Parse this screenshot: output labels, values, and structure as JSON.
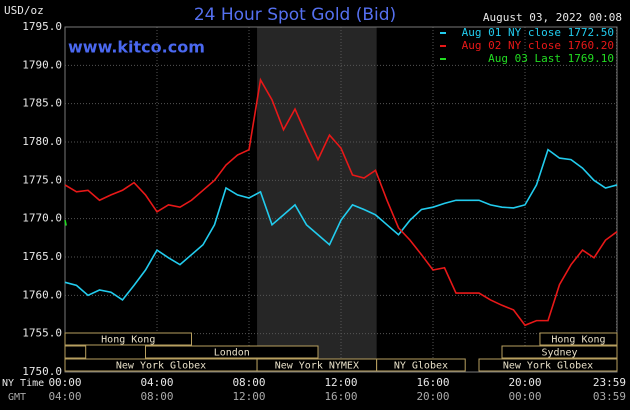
{
  "chart_data": {
    "type": "line",
    "title": "24 Hour Spot Gold (Bid)",
    "site": "www.kitco.com",
    "timestamp": "August 03, 2022 00:08",
    "y_label": "USD/oz",
    "x_label": "NY Time",
    "x2_label": "GMT",
    "xlim": [
      0,
      24
    ],
    "ylim": [
      1750,
      1795
    ],
    "yticks": [
      {
        "value": 1750,
        "label": "1750.0"
      },
      {
        "value": 1755,
        "label": "1755.0"
      },
      {
        "value": 1760,
        "label": "1760.0"
      },
      {
        "value": 1765,
        "label": "1765.0"
      },
      {
        "value": 1770,
        "label": "1770.0"
      },
      {
        "value": 1775,
        "label": "1775.0"
      },
      {
        "value": 1780,
        "label": "1780.0"
      },
      {
        "value": 1785,
        "label": "1785.0"
      },
      {
        "value": 1790,
        "label": "1790.0"
      },
      {
        "value": 1795,
        "label": "1795.0"
      }
    ],
    "xticks": [
      {
        "value": 0,
        "label": "00:00"
      },
      {
        "value": 4,
        "label": "04:00"
      },
      {
        "value": 8,
        "label": "08:00"
      },
      {
        "value": 12,
        "label": "12:00"
      },
      {
        "value": 16,
        "label": "16:00"
      },
      {
        "value": 20,
        "label": "20:00"
      },
      {
        "value": 23.98,
        "label": "23:59"
      }
    ],
    "gmt_labels": [
      "04:00",
      "08:00",
      "12:00",
      "16:00",
      "20:00",
      "00:00",
      "03:59"
    ],
    "grid": true,
    "legend": "top-right",
    "highlight": {
      "start": 8.35,
      "end": 13.55,
      "color": "#262626"
    },
    "x": [
      0,
      0.5,
      1,
      1.5,
      2,
      2.5,
      3,
      3.5,
      4,
      4.5,
      5,
      5.5,
      6,
      6.5,
      7,
      7.5,
      8,
      8.5,
      9,
      9.5,
      10,
      10.5,
      11,
      11.5,
      12,
      12.5,
      13,
      13.5,
      14,
      14.5,
      15,
      15.5,
      16,
      16.5,
      17,
      17.5,
      18,
      18.5,
      19,
      19.5,
      20,
      20.5,
      21,
      21.5,
      22,
      22.5,
      23,
      23.5,
      24
    ],
    "series": [
      {
        "name": "Aug 01 NY close 1772.50",
        "color": "#22ccee",
        "values": [
          1761.7,
          1761.3,
          1760.0,
          1760.7,
          1760.4,
          1759.4,
          1761.3,
          1763.3,
          1765.9,
          1764.9,
          1764.0,
          1765.3,
          1766.6,
          1769.2,
          1774.0,
          1773.1,
          1772.7,
          1773.5,
          1769.2,
          1770.5,
          1771.8,
          1769.2,
          1767.9,
          1766.6,
          1769.8,
          1771.8,
          1771.2,
          1770.5,
          1769.2,
          1767.9,
          1769.8,
          1771.2,
          1771.5,
          1772.0,
          1772.4,
          1772.4,
          1772.4,
          1771.8,
          1771.5,
          1771.4,
          1771.8,
          1774.4,
          1779.0,
          1777.9,
          1777.7,
          1776.6,
          1775.0,
          1774.0,
          1774.4
        ]
      },
      {
        "name": "Aug 02 NY close 1760.20",
        "color": "#e81818",
        "values": [
          1774.4,
          1773.5,
          1773.7,
          1772.4,
          1773.1,
          1773.7,
          1774.7,
          1773.1,
          1770.9,
          1771.8,
          1771.5,
          1772.4,
          1773.7,
          1775.0,
          1777.0,
          1778.3,
          1779.0,
          1788.1,
          1785.5,
          1781.6,
          1784.3,
          1780.9,
          1777.7,
          1780.9,
          1779.2,
          1775.7,
          1775.3,
          1776.3,
          1772.4,
          1768.8,
          1767.2,
          1765.3,
          1763.3,
          1763.6,
          1760.3,
          1760.3,
          1760.3,
          1759.4,
          1758.7,
          1758.1,
          1756.1,
          1756.7,
          1756.7,
          1761.4,
          1764.0,
          1765.9,
          1764.9,
          1767.2,
          1768.3
        ]
      },
      {
        "name": "Aug 03 Last 1769.10",
        "color": "#22dd22",
        "x": [
          0,
          0.05
        ],
        "values": [
          1769.8,
          1769.1
        ]
      }
    ],
    "session_rows": [
      [
        {
          "name": "New York Globex",
          "start": 0,
          "end": 8.35
        },
        {
          "name": "New York NYMEX",
          "start": 8.35,
          "end": 13.55
        },
        {
          "name": "NY Globex",
          "start": 13.55,
          "end": 17.4
        },
        {
          "name": "New York Globex",
          "start": 18,
          "end": 24
        }
      ],
      [
        {
          "name": null,
          "start": 0,
          "end": 0.9
        },
        {
          "name": "London",
          "start": 3.5,
          "end": 11
        },
        {
          "name": "Sydney",
          "start": 19,
          "end": 24
        }
      ],
      [
        {
          "name": "Hong Kong",
          "start": 0,
          "end": 5.5
        },
        {
          "name": "Hong Kong",
          "start": 20.65,
          "end": 24
        }
      ]
    ]
  }
}
